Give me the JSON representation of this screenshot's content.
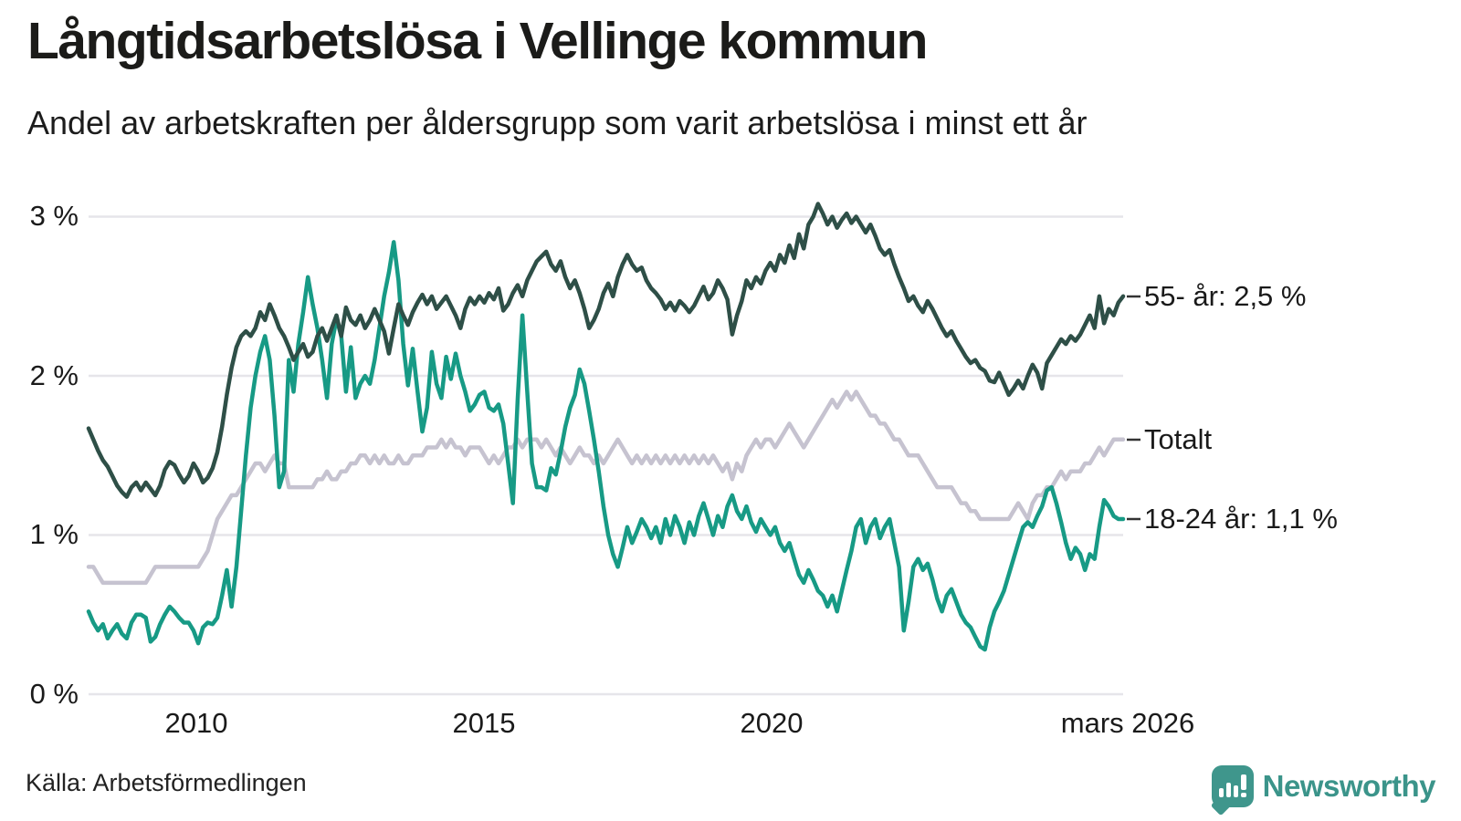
{
  "header": {
    "title": "Långtidsarbetslösa i Vellinge kommun",
    "subtitle": "Andel av arbetskraften per åldersgrupp som varit arbetslösa i minst ett år"
  },
  "axes": {
    "y_ticks": [
      {
        "label": "3 %",
        "value": 3
      },
      {
        "label": "2 %",
        "value": 2
      },
      {
        "label": "1 %",
        "value": 1
      },
      {
        "label": "0 %",
        "value": 0
      }
    ],
    "x_ticks": [
      {
        "label": "2010"
      },
      {
        "label": "2015"
      },
      {
        "label": "2020"
      },
      {
        "label": "mars 2026"
      }
    ]
  },
  "footer": {
    "source": "Källa: Arbetsförmedlingen",
    "logo_text": "Newsworthy"
  },
  "colors": {
    "age55": "#2e4f47",
    "total": "#c6c3d0",
    "age1824": "#179a85",
    "gridline": "#e6e5ea",
    "tick_dash": "#333333",
    "logo_teal": "#3f968c"
  },
  "chart_data": {
    "type": "line",
    "unit": "%",
    "x_start": "2008-02",
    "x_end": "2026-03",
    "x_frequency": "monthly",
    "ylim": [
      0,
      3.2
    ],
    "grid": "horizontal",
    "legend_position": "right-end-labels",
    "series": [
      {
        "name": "55- år",
        "end_label": "55- år: 2,5 %",
        "end_value": 2.5,
        "color": "#2e4f47",
        "values": [
          1.67,
          1.6,
          1.53,
          1.47,
          1.43,
          1.37,
          1.31,
          1.27,
          1.24,
          1.3,
          1.33,
          1.28,
          1.33,
          1.29,
          1.25,
          1.31,
          1.41,
          1.46,
          1.44,
          1.38,
          1.33,
          1.37,
          1.45,
          1.4,
          1.33,
          1.36,
          1.42,
          1.52,
          1.68,
          1.88,
          2.05,
          2.18,
          2.25,
          2.28,
          2.25,
          2.3,
          2.4,
          2.35,
          2.45,
          2.38,
          2.3,
          2.25,
          2.18,
          2.1,
          2.15,
          2.2,
          2.12,
          2.15,
          2.25,
          2.3,
          2.22,
          2.3,
          2.38,
          2.25,
          2.43,
          2.35,
          2.32,
          2.38,
          2.3,
          2.35,
          2.42,
          2.35,
          2.28,
          2.14,
          2.3,
          2.45,
          2.38,
          2.32,
          2.4,
          2.46,
          2.51,
          2.45,
          2.5,
          2.42,
          2.46,
          2.5,
          2.44,
          2.38,
          2.3,
          2.42,
          2.49,
          2.45,
          2.5,
          2.46,
          2.52,
          2.48,
          2.55,
          2.41,
          2.45,
          2.52,
          2.57,
          2.5,
          2.6,
          2.66,
          2.72,
          2.75,
          2.78,
          2.7,
          2.66,
          2.72,
          2.62,
          2.55,
          2.6,
          2.52,
          2.42,
          2.3,
          2.35,
          2.42,
          2.52,
          2.58,
          2.5,
          2.62,
          2.7,
          2.76,
          2.7,
          2.66,
          2.68,
          2.6,
          2.55,
          2.52,
          2.48,
          2.42,
          2.46,
          2.41,
          2.47,
          2.44,
          2.4,
          2.44,
          2.5,
          2.56,
          2.48,
          2.52,
          2.6,
          2.55,
          2.48,
          2.26,
          2.38,
          2.47,
          2.6,
          2.55,
          2.62,
          2.58,
          2.66,
          2.71,
          2.66,
          2.76,
          2.71,
          2.82,
          2.74,
          2.89,
          2.8,
          2.95,
          3.0,
          3.08,
          3.02,
          2.95,
          3.0,
          2.93,
          2.98,
          3.02,
          2.96,
          3.0,
          2.95,
          2.9,
          2.95,
          2.88,
          2.8,
          2.76,
          2.79,
          2.7,
          2.62,
          2.55,
          2.47,
          2.5,
          2.44,
          2.4,
          2.47,
          2.42,
          2.36,
          2.3,
          2.25,
          2.28,
          2.22,
          2.17,
          2.12,
          2.08,
          2.1,
          2.05,
          2.03,
          1.97,
          1.96,
          2.02,
          1.95,
          1.88,
          1.92,
          1.97,
          1.92,
          2.0,
          2.07,
          2.02,
          1.92,
          2.08,
          2.13,
          2.18,
          2.23,
          2.2,
          2.25,
          2.22,
          2.26,
          2.32,
          2.38,
          2.3,
          2.5,
          2.33,
          2.42,
          2.38,
          2.46,
          2.5
        ]
      },
      {
        "name": "Totalt",
        "end_label": "Totalt",
        "end_value": 1.6,
        "color": "#c6c3d0",
        "values": [
          0.8,
          0.8,
          0.75,
          0.7,
          0.7,
          0.7,
          0.7,
          0.7,
          0.7,
          0.7,
          0.7,
          0.7,
          0.7,
          0.75,
          0.8,
          0.8,
          0.8,
          0.8,
          0.8,
          0.8,
          0.8,
          0.8,
          0.8,
          0.8,
          0.85,
          0.9,
          1.0,
          1.1,
          1.15,
          1.2,
          1.25,
          1.25,
          1.3,
          1.35,
          1.4,
          1.45,
          1.45,
          1.4,
          1.45,
          1.5,
          1.45,
          1.45,
          1.3,
          1.3,
          1.3,
          1.3,
          1.3,
          1.3,
          1.35,
          1.35,
          1.4,
          1.35,
          1.35,
          1.4,
          1.4,
          1.45,
          1.45,
          1.5,
          1.5,
          1.45,
          1.5,
          1.45,
          1.5,
          1.45,
          1.45,
          1.5,
          1.45,
          1.45,
          1.5,
          1.5,
          1.5,
          1.55,
          1.55,
          1.55,
          1.6,
          1.55,
          1.6,
          1.55,
          1.55,
          1.5,
          1.55,
          1.55,
          1.55,
          1.5,
          1.45,
          1.5,
          1.45,
          1.5,
          1.55,
          1.55,
          1.6,
          1.55,
          1.6,
          1.6,
          1.6,
          1.55,
          1.6,
          1.55,
          1.5,
          1.55,
          1.5,
          1.45,
          1.5,
          1.55,
          1.5,
          1.5,
          1.45,
          1.5,
          1.45,
          1.5,
          1.55,
          1.6,
          1.55,
          1.5,
          1.45,
          1.5,
          1.45,
          1.5,
          1.45,
          1.5,
          1.45,
          1.5,
          1.45,
          1.5,
          1.45,
          1.5,
          1.45,
          1.5,
          1.45,
          1.5,
          1.45,
          1.5,
          1.45,
          1.4,
          1.45,
          1.35,
          1.45,
          1.4,
          1.5,
          1.55,
          1.6,
          1.55,
          1.6,
          1.6,
          1.55,
          1.6,
          1.65,
          1.7,
          1.65,
          1.6,
          1.55,
          1.6,
          1.65,
          1.7,
          1.75,
          1.8,
          1.85,
          1.8,
          1.85,
          1.9,
          1.85,
          1.9,
          1.85,
          1.8,
          1.75,
          1.75,
          1.7,
          1.7,
          1.65,
          1.6,
          1.6,
          1.55,
          1.5,
          1.5,
          1.5,
          1.45,
          1.4,
          1.35,
          1.3,
          1.3,
          1.3,
          1.3,
          1.25,
          1.2,
          1.2,
          1.15,
          1.15,
          1.1,
          1.1,
          1.1,
          1.1,
          1.1,
          1.1,
          1.1,
          1.15,
          1.2,
          1.15,
          1.1,
          1.2,
          1.25,
          1.25,
          1.3,
          1.3,
          1.35,
          1.4,
          1.35,
          1.4,
          1.4,
          1.4,
          1.45,
          1.45,
          1.5,
          1.55,
          1.5,
          1.55,
          1.6,
          1.6,
          1.6
        ]
      },
      {
        "name": "18-24 år",
        "end_label": "18-24 år: 1,1 %",
        "end_value": 1.1,
        "color": "#179a85",
        "values": [
          0.52,
          0.45,
          0.4,
          0.44,
          0.35,
          0.4,
          0.44,
          0.38,
          0.35,
          0.45,
          0.5,
          0.5,
          0.48,
          0.33,
          0.36,
          0.44,
          0.5,
          0.55,
          0.52,
          0.48,
          0.45,
          0.45,
          0.4,
          0.32,
          0.42,
          0.45,
          0.44,
          0.48,
          0.62,
          0.78,
          0.55,
          0.8,
          1.15,
          1.5,
          1.8,
          2.0,
          2.15,
          2.25,
          2.1,
          1.75,
          1.3,
          1.4,
          2.1,
          1.9,
          2.2,
          2.4,
          2.62,
          2.45,
          2.3,
          2.1,
          1.86,
          2.2,
          2.36,
          2.25,
          1.9,
          2.18,
          1.86,
          1.95,
          2.0,
          1.95,
          2.1,
          2.3,
          2.5,
          2.65,
          2.84,
          2.6,
          2.2,
          1.94,
          2.17,
          1.9,
          1.65,
          1.8,
          2.15,
          1.95,
          1.86,
          2.12,
          1.98,
          2.14,
          2.0,
          1.9,
          1.78,
          1.82,
          1.88,
          1.9,
          1.8,
          1.78,
          1.82,
          1.7,
          1.45,
          1.2,
          1.85,
          2.38,
          1.9,
          1.45,
          1.3,
          1.3,
          1.28,
          1.42,
          1.38,
          1.52,
          1.68,
          1.8,
          1.88,
          2.04,
          1.95,
          1.78,
          1.6,
          1.4,
          1.18,
          1.0,
          0.88,
          0.8,
          0.92,
          1.05,
          0.95,
          1.02,
          1.1,
          1.05,
          0.98,
          1.05,
          0.95,
          1.1,
          1.0,
          1.12,
          1.05,
          0.95,
          1.08,
          1.0,
          1.12,
          1.2,
          1.1,
          1.0,
          1.12,
          1.05,
          1.18,
          1.25,
          1.15,
          1.1,
          1.18,
          1.08,
          1.02,
          1.1,
          1.05,
          1.0,
          1.05,
          0.95,
          0.9,
          0.95,
          0.85,
          0.75,
          0.7,
          0.78,
          0.72,
          0.65,
          0.62,
          0.55,
          0.62,
          0.52,
          0.65,
          0.78,
          0.9,
          1.05,
          1.1,
          0.95,
          1.05,
          1.1,
          0.98,
          1.05,
          1.1,
          0.95,
          0.8,
          0.4,
          0.58,
          0.8,
          0.85,
          0.78,
          0.82,
          0.72,
          0.6,
          0.52,
          0.62,
          0.66,
          0.58,
          0.5,
          0.45,
          0.42,
          0.36,
          0.3,
          0.28,
          0.42,
          0.52,
          0.58,
          0.65,
          0.75,
          0.85,
          0.95,
          1.05,
          1.08,
          1.05,
          1.12,
          1.18,
          1.28,
          1.3,
          1.2,
          1.08,
          0.95,
          0.85,
          0.92,
          0.88,
          0.78,
          0.88,
          0.85,
          1.05,
          1.22,
          1.18,
          1.12,
          1.1,
          1.1
        ]
      }
    ]
  }
}
